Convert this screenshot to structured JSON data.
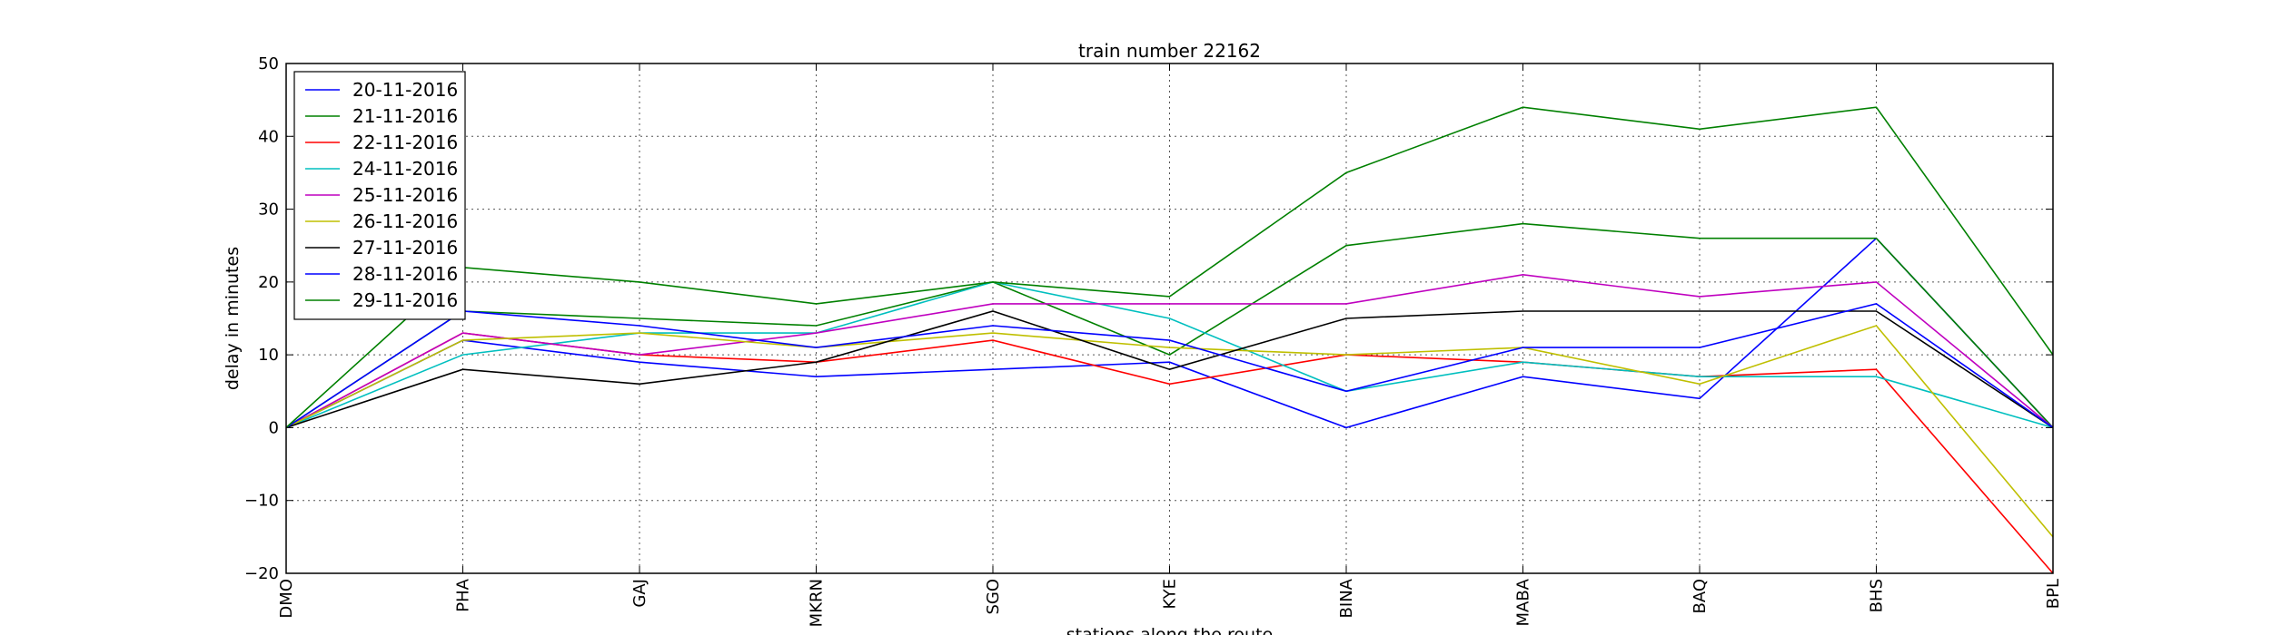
{
  "chart_data": {
    "type": "line",
    "title": "train number 22162",
    "xlabel": "stations along the route",
    "ylabel": "delay in minutes",
    "ylim": [
      -20,
      50
    ],
    "yticks": [
      -20,
      -10,
      0,
      10,
      20,
      30,
      40,
      50
    ],
    "grid": true,
    "legend_position": "top-left",
    "categories": [
      "DMO",
      "PHA",
      "GAJ",
      "MKRN",
      "SGO",
      "KYE",
      "BINA",
      "MABA",
      "BAQ",
      "BHS",
      "BPL"
    ],
    "series": [
      {
        "name": "20-11-2016",
        "color": "#0000ff",
        "values": [
          0,
          12,
          9,
          7,
          8,
          9,
          0,
          7,
          4,
          26,
          0
        ]
      },
      {
        "name": "21-11-2016",
        "color": "#008000",
        "values": [
          0,
          16,
          15,
          14,
          20,
          10,
          25,
          28,
          26,
          26,
          0
        ]
      },
      {
        "name": "22-11-2016",
        "color": "#ff0000",
        "values": [
          0,
          13,
          10,
          9,
          12,
          6,
          10,
          9,
          7,
          8,
          -20
        ]
      },
      {
        "name": "24-11-2016",
        "color": "#00bfbf",
        "values": [
          0,
          10,
          13,
          13,
          20,
          15,
          5,
          9,
          7,
          7,
          0
        ]
      },
      {
        "name": "25-11-2016",
        "color": "#bf00bf",
        "values": [
          0,
          13,
          10,
          13,
          17,
          17,
          17,
          21,
          18,
          20,
          0
        ]
      },
      {
        "name": "26-11-2016",
        "color": "#bfbf00",
        "values": [
          0,
          12,
          13,
          11,
          13,
          11,
          10,
          11,
          6,
          14,
          -15
        ]
      },
      {
        "name": "27-11-2016",
        "color": "#000000",
        "values": [
          0,
          8,
          6,
          9,
          16,
          8,
          15,
          16,
          16,
          16,
          0
        ]
      },
      {
        "name": "28-11-2016",
        "color": "#0000ff",
        "values": [
          0,
          16,
          14,
          11,
          14,
          12,
          5,
          11,
          11,
          17,
          0
        ]
      },
      {
        "name": "29-11-2016",
        "color": "#008000",
        "values": [
          0,
          22,
          20,
          17,
          20,
          18,
          35,
          44,
          41,
          44,
          10
        ]
      }
    ]
  }
}
